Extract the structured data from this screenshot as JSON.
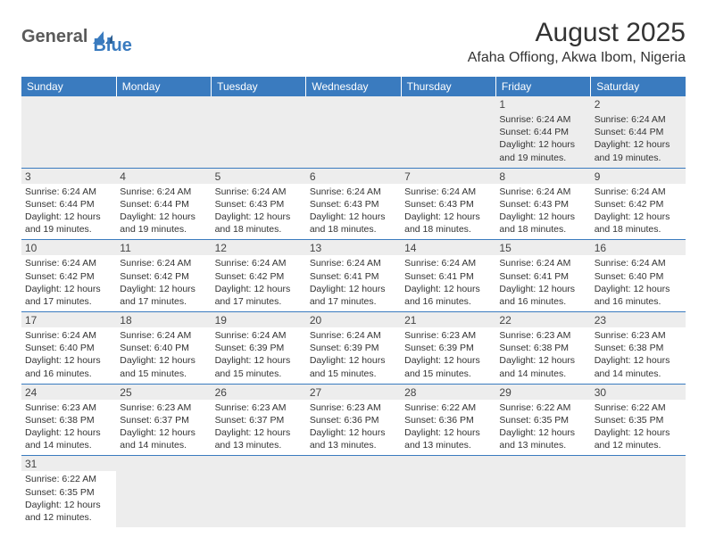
{
  "logo": {
    "text1": "General",
    "text2": "Blue"
  },
  "title": "August 2025",
  "location": "Afaha Offiong, Akwa Ibom, Nigeria",
  "colors": {
    "header_bg": "#3a7bbf",
    "header_fg": "#ffffff",
    "daynum_bg": "#ededed",
    "border": "#3a7bbf",
    "text": "#333333"
  },
  "day_headers": [
    "Sunday",
    "Monday",
    "Tuesday",
    "Wednesday",
    "Thursday",
    "Friday",
    "Saturday"
  ],
  "weeks": [
    [
      null,
      null,
      null,
      null,
      null,
      {
        "n": "1",
        "sr": "Sunrise: 6:24 AM",
        "ss": "Sunset: 6:44 PM",
        "d1": "Daylight: 12 hours",
        "d2": "and 19 minutes."
      },
      {
        "n": "2",
        "sr": "Sunrise: 6:24 AM",
        "ss": "Sunset: 6:44 PM",
        "d1": "Daylight: 12 hours",
        "d2": "and 19 minutes."
      }
    ],
    [
      {
        "n": "3",
        "sr": "Sunrise: 6:24 AM",
        "ss": "Sunset: 6:44 PM",
        "d1": "Daylight: 12 hours",
        "d2": "and 19 minutes."
      },
      {
        "n": "4",
        "sr": "Sunrise: 6:24 AM",
        "ss": "Sunset: 6:44 PM",
        "d1": "Daylight: 12 hours",
        "d2": "and 19 minutes."
      },
      {
        "n": "5",
        "sr": "Sunrise: 6:24 AM",
        "ss": "Sunset: 6:43 PM",
        "d1": "Daylight: 12 hours",
        "d2": "and 18 minutes."
      },
      {
        "n": "6",
        "sr": "Sunrise: 6:24 AM",
        "ss": "Sunset: 6:43 PM",
        "d1": "Daylight: 12 hours",
        "d2": "and 18 minutes."
      },
      {
        "n": "7",
        "sr": "Sunrise: 6:24 AM",
        "ss": "Sunset: 6:43 PM",
        "d1": "Daylight: 12 hours",
        "d2": "and 18 minutes."
      },
      {
        "n": "8",
        "sr": "Sunrise: 6:24 AM",
        "ss": "Sunset: 6:43 PM",
        "d1": "Daylight: 12 hours",
        "d2": "and 18 minutes."
      },
      {
        "n": "9",
        "sr": "Sunrise: 6:24 AM",
        "ss": "Sunset: 6:42 PM",
        "d1": "Daylight: 12 hours",
        "d2": "and 18 minutes."
      }
    ],
    [
      {
        "n": "10",
        "sr": "Sunrise: 6:24 AM",
        "ss": "Sunset: 6:42 PM",
        "d1": "Daylight: 12 hours",
        "d2": "and 17 minutes."
      },
      {
        "n": "11",
        "sr": "Sunrise: 6:24 AM",
        "ss": "Sunset: 6:42 PM",
        "d1": "Daylight: 12 hours",
        "d2": "and 17 minutes."
      },
      {
        "n": "12",
        "sr": "Sunrise: 6:24 AM",
        "ss": "Sunset: 6:42 PM",
        "d1": "Daylight: 12 hours",
        "d2": "and 17 minutes."
      },
      {
        "n": "13",
        "sr": "Sunrise: 6:24 AM",
        "ss": "Sunset: 6:41 PM",
        "d1": "Daylight: 12 hours",
        "d2": "and 17 minutes."
      },
      {
        "n": "14",
        "sr": "Sunrise: 6:24 AM",
        "ss": "Sunset: 6:41 PM",
        "d1": "Daylight: 12 hours",
        "d2": "and 16 minutes."
      },
      {
        "n": "15",
        "sr": "Sunrise: 6:24 AM",
        "ss": "Sunset: 6:41 PM",
        "d1": "Daylight: 12 hours",
        "d2": "and 16 minutes."
      },
      {
        "n": "16",
        "sr": "Sunrise: 6:24 AM",
        "ss": "Sunset: 6:40 PM",
        "d1": "Daylight: 12 hours",
        "d2": "and 16 minutes."
      }
    ],
    [
      {
        "n": "17",
        "sr": "Sunrise: 6:24 AM",
        "ss": "Sunset: 6:40 PM",
        "d1": "Daylight: 12 hours",
        "d2": "and 16 minutes."
      },
      {
        "n": "18",
        "sr": "Sunrise: 6:24 AM",
        "ss": "Sunset: 6:40 PM",
        "d1": "Daylight: 12 hours",
        "d2": "and 15 minutes."
      },
      {
        "n": "19",
        "sr": "Sunrise: 6:24 AM",
        "ss": "Sunset: 6:39 PM",
        "d1": "Daylight: 12 hours",
        "d2": "and 15 minutes."
      },
      {
        "n": "20",
        "sr": "Sunrise: 6:24 AM",
        "ss": "Sunset: 6:39 PM",
        "d1": "Daylight: 12 hours",
        "d2": "and 15 minutes."
      },
      {
        "n": "21",
        "sr": "Sunrise: 6:23 AM",
        "ss": "Sunset: 6:39 PM",
        "d1": "Daylight: 12 hours",
        "d2": "and 15 minutes."
      },
      {
        "n": "22",
        "sr": "Sunrise: 6:23 AM",
        "ss": "Sunset: 6:38 PM",
        "d1": "Daylight: 12 hours",
        "d2": "and 14 minutes."
      },
      {
        "n": "23",
        "sr": "Sunrise: 6:23 AM",
        "ss": "Sunset: 6:38 PM",
        "d1": "Daylight: 12 hours",
        "d2": "and 14 minutes."
      }
    ],
    [
      {
        "n": "24",
        "sr": "Sunrise: 6:23 AM",
        "ss": "Sunset: 6:38 PM",
        "d1": "Daylight: 12 hours",
        "d2": "and 14 minutes."
      },
      {
        "n": "25",
        "sr": "Sunrise: 6:23 AM",
        "ss": "Sunset: 6:37 PM",
        "d1": "Daylight: 12 hours",
        "d2": "and 14 minutes."
      },
      {
        "n": "26",
        "sr": "Sunrise: 6:23 AM",
        "ss": "Sunset: 6:37 PM",
        "d1": "Daylight: 12 hours",
        "d2": "and 13 minutes."
      },
      {
        "n": "27",
        "sr": "Sunrise: 6:23 AM",
        "ss": "Sunset: 6:36 PM",
        "d1": "Daylight: 12 hours",
        "d2": "and 13 minutes."
      },
      {
        "n": "28",
        "sr": "Sunrise: 6:22 AM",
        "ss": "Sunset: 6:36 PM",
        "d1": "Daylight: 12 hours",
        "d2": "and 13 minutes."
      },
      {
        "n": "29",
        "sr": "Sunrise: 6:22 AM",
        "ss": "Sunset: 6:35 PM",
        "d1": "Daylight: 12 hours",
        "d2": "and 13 minutes."
      },
      {
        "n": "30",
        "sr": "Sunrise: 6:22 AM",
        "ss": "Sunset: 6:35 PM",
        "d1": "Daylight: 12 hours",
        "d2": "and 12 minutes."
      }
    ],
    [
      {
        "n": "31",
        "sr": "Sunrise: 6:22 AM",
        "ss": "Sunset: 6:35 PM",
        "d1": "Daylight: 12 hours",
        "d2": "and 12 minutes."
      },
      null,
      null,
      null,
      null,
      null,
      null
    ]
  ]
}
